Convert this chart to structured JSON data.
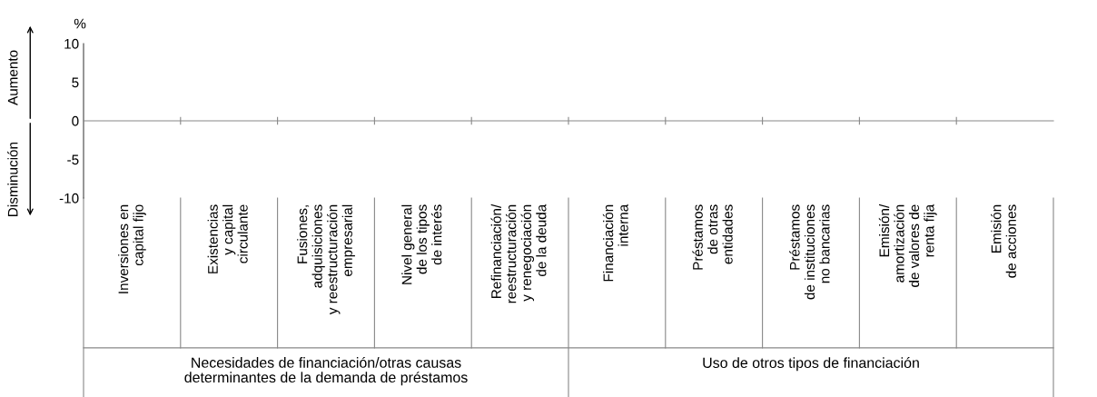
{
  "chart_data": {
    "type": "bar",
    "ylabel": "%",
    "categories": [
      "Inversiones en\ncapital fijo",
      "Existencias\ny capital\ncirculante",
      "Fusiones,\nadquisiciones\ny reestructuración\nempresarial",
      "Nivel general\nde los tipos\nde interés",
      "Refinanciación/\nreestructuración\ny renegociación\nde la deuda",
      "Financiación\ninterna",
      "Préstamos\nde otras\nentidades",
      "Préstamos\nde instituciones\nno bancarias",
      "Emisión/\namortización\nde valores de\nrenta fija",
      "Emisión\nde acciones"
    ],
    "values": [
      0,
      0,
      0,
      0,
      0,
      0,
      0,
      0,
      0,
      0
    ],
    "ylim": [
      -10,
      10
    ],
    "yticks": [
      -10,
      -5,
      0,
      5,
      10
    ],
    "annotations": [
      "Aumento",
      "Disminución",
      "Necesidades de financiación/otras causas\ndeterminantes de la demanda de préstamos",
      "Uso de otros tipos de financiación"
    ],
    "legend": false
  }
}
